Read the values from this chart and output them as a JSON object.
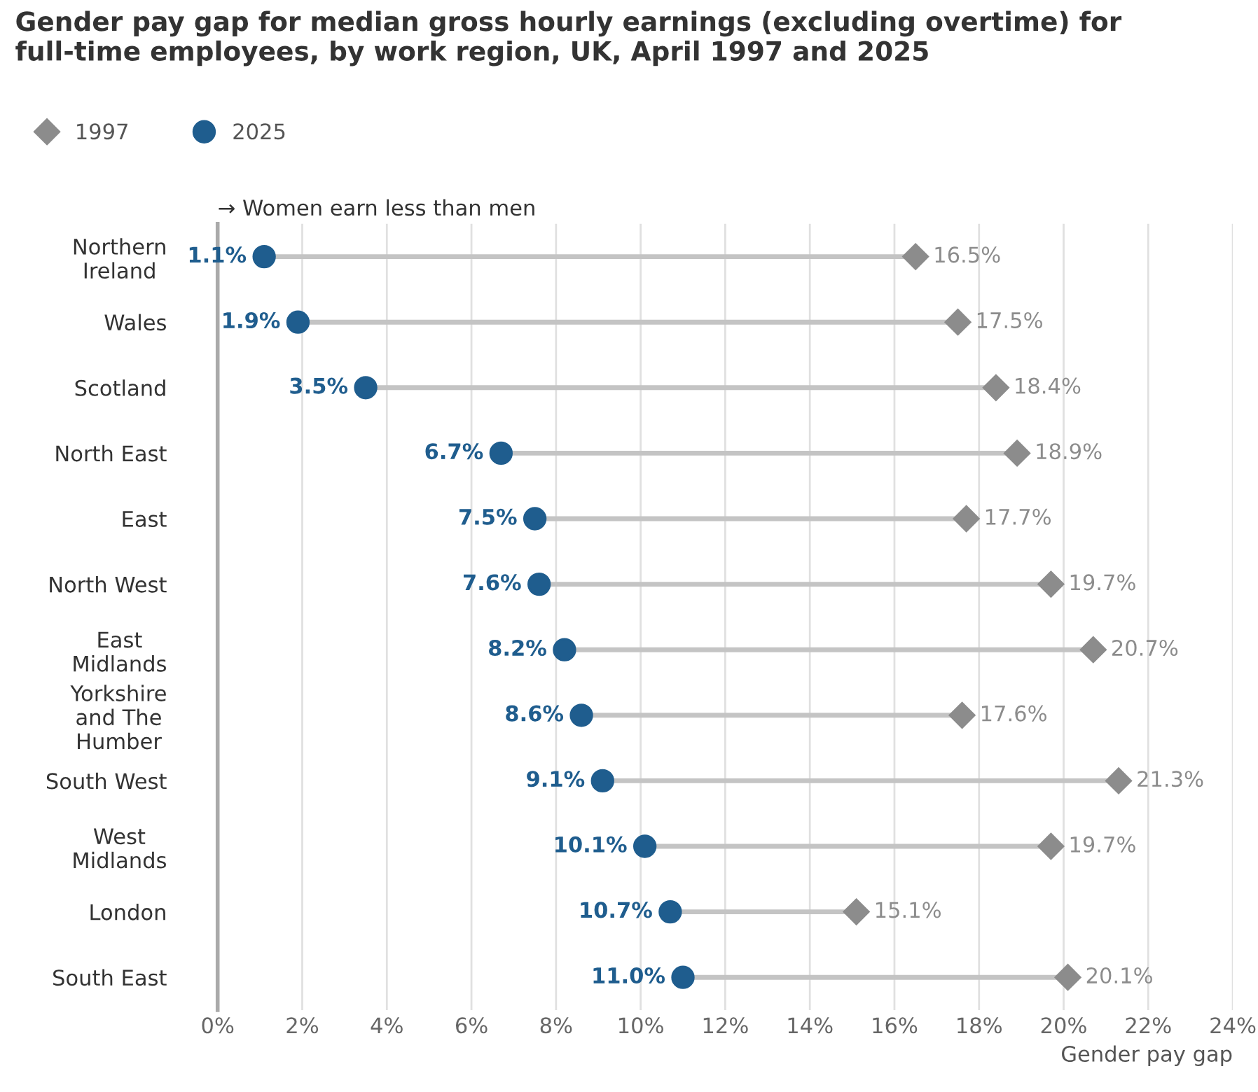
{
  "chart_data": {
    "type": "scatter",
    "orientation": "horizontal",
    "title": "Gender pay gap for median gross hourly earnings (excluding overtime) for full-time employees, by work region, UK, April 1997 and 2025",
    "xlabel": "Gender pay gap",
    "annotations": [
      "→ Women earn less than men"
    ],
    "categories": [
      "Northern Ireland",
      "Wales",
      "Scotland",
      "North East",
      "East",
      "North West",
      "East Midlands",
      "Yorkshire and The Humber",
      "South West",
      "West Midlands",
      "London",
      "South East"
    ],
    "series": [
      {
        "name": "1997",
        "color": "#8c8c8c",
        "marker": "diamond",
        "values": [
          16.5,
          17.5,
          18.4,
          18.9,
          17.7,
          19.7,
          20.7,
          17.6,
          21.3,
          19.7,
          15.1,
          20.1
        ],
        "value_labels": [
          "16.5%",
          "17.5%",
          "18.4%",
          "18.9%",
          "17.7%",
          "19.7%",
          "20.7%",
          "17.6%",
          "21.3%",
          "19.7%",
          "15.1%",
          "20.1%"
        ]
      },
      {
        "name": "2025",
        "color": "#1f5d8e",
        "marker": "circle",
        "values": [
          1.1,
          1.9,
          3.5,
          6.7,
          7.5,
          7.6,
          8.2,
          8.6,
          9.1,
          10.1,
          10.7,
          11.0
        ],
        "value_labels": [
          "1.1%",
          "1.9%",
          "3.5%",
          "6.7%",
          "7.5%",
          "7.6%",
          "8.2%",
          "8.6%",
          "9.1%",
          "10.1%",
          "10.7%",
          "11.0%"
        ]
      }
    ],
    "xlim": [
      0,
      24
    ],
    "xticks": [
      {
        "value": 0,
        "label": "0%"
      },
      {
        "value": 2,
        "label": "2%"
      },
      {
        "value": 4,
        "label": "4%"
      },
      {
        "value": 6,
        "label": "6%"
      },
      {
        "value": 8,
        "label": "8%"
      },
      {
        "value": 10,
        "label": "10%"
      },
      {
        "value": 12,
        "label": "12%"
      },
      {
        "value": 14,
        "label": "14%"
      },
      {
        "value": 16,
        "label": "16%"
      },
      {
        "value": 18,
        "label": "18%"
      },
      {
        "value": 20,
        "label": "20%"
      },
      {
        "value": 22,
        "label": "22%"
      },
      {
        "value": 24,
        "label": "24%"
      }
    ],
    "grid": "x",
    "legend": "top left"
  }
}
